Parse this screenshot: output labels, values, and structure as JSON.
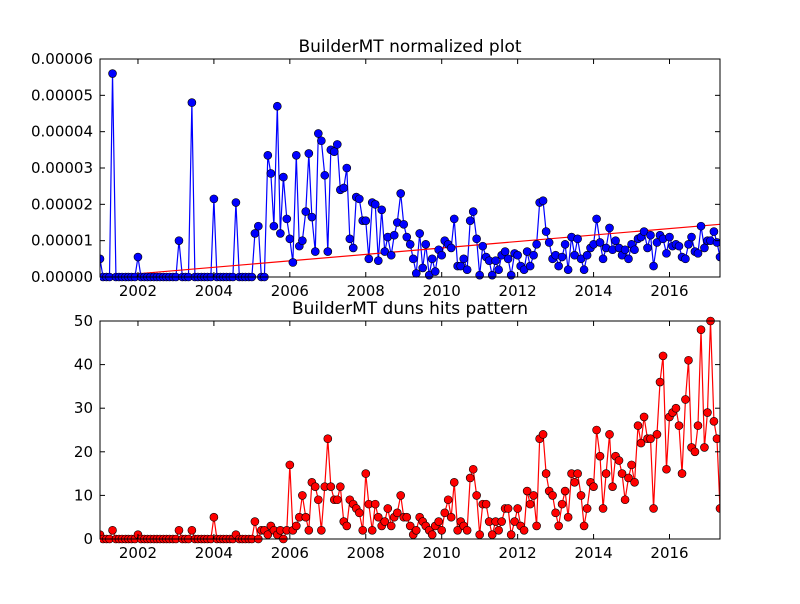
{
  "chart_data": [
    {
      "type": "line",
      "title": "BuilderMT normalized plot",
      "color": "#0000ff",
      "x": [
        2001,
        2001.08,
        2001.17,
        2001.25,
        2001.33,
        2001.42,
        2001.5,
        2001.58,
        2001.67,
        2001.75,
        2001.83,
        2001.92,
        2002,
        2002.08,
        2002.17,
        2002.25,
        2002.33,
        2002.42,
        2002.5,
        2002.58,
        2002.67,
        2002.75,
        2002.83,
        2002.92,
        2003,
        2003.08,
        2003.17,
        2003.25,
        2003.33,
        2003.42,
        2003.5,
        2003.58,
        2003.67,
        2003.75,
        2003.83,
        2003.92,
        2004,
        2004.08,
        2004.17,
        2004.25,
        2004.33,
        2004.42,
        2004.5,
        2004.58,
        2004.67,
        2004.75,
        2004.83,
        2004.92,
        2005,
        2005.08,
        2005.17,
        2005.25,
        2005.33,
        2005.42,
        2005.5,
        2005.58,
        2005.67,
        2005.75,
        2005.83,
        2005.92,
        2006,
        2006.08,
        2006.17,
        2006.25,
        2006.33,
        2006.42,
        2006.5,
        2006.58,
        2006.67,
        2006.75,
        2006.83,
        2006.92,
        2007,
        2007.08,
        2007.17,
        2007.25,
        2007.33,
        2007.42,
        2007.5,
        2007.58,
        2007.67,
        2007.75,
        2007.83,
        2007.92,
        2008,
        2008.08,
        2008.17,
        2008.25,
        2008.33,
        2008.42,
        2008.5,
        2008.58,
        2008.67,
        2008.75,
        2008.83,
        2008.92,
        2009,
        2009.08,
        2009.17,
        2009.25,
        2009.33,
        2009.42,
        2009.5,
        2009.58,
        2009.67,
        2009.75,
        2009.83,
        2009.92,
        2010,
        2010.08,
        2010.17,
        2010.25,
        2010.33,
        2010.42,
        2010.5,
        2010.58,
        2010.67,
        2010.75,
        2010.83,
        2010.92,
        2011,
        2011.08,
        2011.17,
        2011.25,
        2011.33,
        2011.42,
        2011.5,
        2011.58,
        2011.67,
        2011.75,
        2011.83,
        2011.92,
        2012,
        2012.08,
        2012.17,
        2012.25,
        2012.33,
        2012.42,
        2012.5,
        2012.58,
        2012.67,
        2012.75,
        2012.83,
        2012.92,
        2013,
        2013.08,
        2013.17,
        2013.25,
        2013.33,
        2013.42,
        2013.5,
        2013.58,
        2013.67,
        2013.75,
        2013.83,
        2013.92,
        2014,
        2014.08,
        2014.17,
        2014.25,
        2014.33,
        2014.42,
        2014.5,
        2014.58,
        2014.67,
        2014.75,
        2014.83,
        2014.92,
        2015,
        2015.08,
        2015.17,
        2015.25,
        2015.33,
        2015.42,
        2015.5,
        2015.58,
        2015.67,
        2015.75,
        2015.83,
        2015.92,
        2016,
        2016.08,
        2016.17,
        2016.25,
        2016.33,
        2016.42,
        2016.5,
        2016.58,
        2016.67,
        2016.75,
        2016.83,
        2016.92,
        2017,
        2017.08,
        2017.17,
        2017.25,
        2017.33
      ],
      "values": [
        5e-06,
        0,
        0,
        0,
        5.6e-05,
        0,
        0,
        0,
        0,
        0,
        0,
        0,
        5.5e-06,
        0,
        0,
        0,
        0,
        0,
        0,
        0,
        0,
        0,
        0,
        0,
        0,
        1e-05,
        0,
        0,
        0,
        4.8e-05,
        0,
        0,
        0,
        0,
        0,
        0,
        2.15e-05,
        0,
        0,
        0,
        0,
        0,
        0,
        2.05e-05,
        0,
        0,
        0,
        0,
        0,
        1.2e-05,
        1.4e-05,
        0,
        0,
        3.35e-05,
        2.85e-05,
        1.4e-05,
        4.7e-05,
        1.2e-05,
        2.75e-05,
        1.6e-05,
        1.05e-05,
        4e-06,
        3.35e-05,
        8.5e-06,
        1e-05,
        1.8e-05,
        3.4e-05,
        1.65e-05,
        7e-06,
        3.95e-05,
        3.75e-05,
        2.8e-05,
        7e-06,
        3.5e-05,
        3.45e-05,
        3.65e-05,
        2.4e-05,
        2.45e-05,
        3e-05,
        1.05e-05,
        8e-06,
        2.2e-05,
        2.15e-05,
        1.55e-05,
        1.55e-05,
        5e-06,
        2.05e-05,
        2e-05,
        4.5e-06,
        1.85e-05,
        7e-06,
        1.1e-05,
        6e-06,
        1.15e-05,
        1.5e-05,
        2.3e-05,
        1.45e-05,
        1.1e-05,
        9e-06,
        5e-06,
        1e-06,
        1.2e-05,
        2.5e-06,
        9e-06,
        5e-07,
        5e-06,
        1.5e-06,
        7.5e-06,
        6e-06,
        1e-05,
        9e-06,
        8e-06,
        1.6e-05,
        3e-06,
        3e-06,
        5e-06,
        2e-06,
        1.55e-05,
        1.8e-05,
        1.05e-05,
        5e-07,
        8.5e-06,
        5.5e-06,
        4.5e-06,
        5e-07,
        4.5e-06,
        2e-06,
        6e-06,
        7e-06,
        5e-06,
        5e-07,
        6.5e-06,
        6e-06,
        3e-06,
        2e-06,
        7e-06,
        3e-06,
        6e-06,
        9e-06,
        2.05e-05,
        2.1e-05,
        1.25e-05,
        9.5e-06,
        5e-06,
        6e-06,
        3e-06,
        5.5e-06,
        9e-06,
        2e-06,
        1.1e-05,
        6e-06,
        1.05e-05,
        5e-06,
        2e-06,
        6e-06,
        8e-06,
        9e-06,
        1.6e-05,
        9.5e-06,
        5e-06,
        8e-06,
        1.35e-05,
        7.5e-06,
        1e-05,
        8e-06,
        6e-06,
        7.5e-06,
        5e-06,
        9e-06,
        7.5e-06,
        1.05e-05,
        1.1e-05,
        1.25e-05,
        8e-06,
        1.15e-05,
        3e-06,
        9.5e-06,
        1.15e-05,
        1.05e-05,
        6.5e-06,
        1.1e-05,
        8.5e-06,
        9e-06,
        8.5e-06,
        5.5e-06,
        5e-06,
        9e-06,
        1.1e-05,
        7e-06,
        6.5e-06,
        1.4e-05,
        8e-06,
        1e-05,
        1e-05,
        1.25e-05,
        9.5e-06,
        5.5e-06
      ],
      "trend": {
        "color": "#ff0000",
        "x": [
          2001,
          2017.33
        ],
        "values": [
          0,
          1.45e-05
        ]
      },
      "xlim": [
        2001,
        2017.33
      ],
      "xticks": [
        2002,
        2004,
        2006,
        2008,
        2010,
        2012,
        2014,
        2016
      ],
      "ylim": [
        0,
        6e-05
      ],
      "yticks": [
        {
          "value": 0,
          "label": "0.00000"
        },
        {
          "value": 1e-05,
          "label": "0.00001"
        },
        {
          "value": 2e-05,
          "label": "0.00002"
        },
        {
          "value": 3e-05,
          "label": "0.00003"
        },
        {
          "value": 4e-05,
          "label": "0.00004"
        },
        {
          "value": 5e-05,
          "label": "0.00005"
        },
        {
          "value": 6e-05,
          "label": "0.00006"
        }
      ]
    },
    {
      "type": "line",
      "title": "BuilderMT duns hits pattern",
      "color": "#ff0000",
      "x": [
        2001,
        2001.08,
        2001.17,
        2001.25,
        2001.33,
        2001.42,
        2001.5,
        2001.58,
        2001.67,
        2001.75,
        2001.83,
        2001.92,
        2002,
        2002.08,
        2002.17,
        2002.25,
        2002.33,
        2002.42,
        2002.5,
        2002.58,
        2002.67,
        2002.75,
        2002.83,
        2002.92,
        2003,
        2003.08,
        2003.17,
        2003.25,
        2003.33,
        2003.42,
        2003.5,
        2003.58,
        2003.67,
        2003.75,
        2003.83,
        2003.92,
        2004,
        2004.08,
        2004.17,
        2004.25,
        2004.33,
        2004.42,
        2004.5,
        2004.58,
        2004.67,
        2004.75,
        2004.83,
        2004.92,
        2005,
        2005.08,
        2005.17,
        2005.25,
        2005.33,
        2005.42,
        2005.5,
        2005.58,
        2005.67,
        2005.75,
        2005.83,
        2005.92,
        2006,
        2006.08,
        2006.17,
        2006.25,
        2006.33,
        2006.42,
        2006.5,
        2006.58,
        2006.67,
        2006.75,
        2006.83,
        2006.92,
        2007,
        2007.08,
        2007.17,
        2007.25,
        2007.33,
        2007.42,
        2007.5,
        2007.58,
        2007.67,
        2007.75,
        2007.83,
        2007.92,
        2008,
        2008.08,
        2008.17,
        2008.25,
        2008.33,
        2008.42,
        2008.5,
        2008.58,
        2008.67,
        2008.75,
        2008.83,
        2008.92,
        2009,
        2009.08,
        2009.17,
        2009.25,
        2009.33,
        2009.42,
        2009.5,
        2009.58,
        2009.67,
        2009.75,
        2009.83,
        2009.92,
        2010,
        2010.08,
        2010.17,
        2010.25,
        2010.33,
        2010.42,
        2010.5,
        2010.58,
        2010.67,
        2010.75,
        2010.83,
        2010.92,
        2011,
        2011.08,
        2011.17,
        2011.25,
        2011.33,
        2011.42,
        2011.5,
        2011.58,
        2011.67,
        2011.75,
        2011.83,
        2011.92,
        2012,
        2012.08,
        2012.17,
        2012.25,
        2012.33,
        2012.42,
        2012.5,
        2012.58,
        2012.67,
        2012.75,
        2012.83,
        2012.92,
        2013,
        2013.08,
        2013.17,
        2013.25,
        2013.33,
        2013.42,
        2013.5,
        2013.58,
        2013.67,
        2013.75,
        2013.83,
        2013.92,
        2014,
        2014.08,
        2014.17,
        2014.25,
        2014.33,
        2014.42,
        2014.5,
        2014.58,
        2014.67,
        2014.75,
        2014.83,
        2014.92,
        2015,
        2015.08,
        2015.17,
        2015.25,
        2015.33,
        2015.42,
        2015.5,
        2015.58,
        2015.67,
        2015.75,
        2015.83,
        2015.92,
        2016,
        2016.08,
        2016.17,
        2016.25,
        2016.33,
        2016.42,
        2016.5,
        2016.58,
        2016.67,
        2016.75,
        2016.83,
        2016.92,
        2017,
        2017.08,
        2017.17,
        2017.25,
        2017.33
      ],
      "values": [
        1,
        0,
        0,
        0,
        2,
        0,
        0,
        0,
        0,
        0,
        0,
        0,
        1,
        0,
        0,
        0,
        0,
        0,
        0,
        0,
        0,
        0,
        0,
        0,
        0,
        2,
        0,
        0,
        0,
        2,
        0,
        0,
        0,
        0,
        0,
        0,
        5,
        0,
        0,
        0,
        0,
        0,
        0,
        1,
        0,
        0,
        0,
        0,
        0,
        4,
        0,
        2,
        2,
        1,
        3,
        2,
        1,
        2,
        0,
        2,
        17,
        2,
        3,
        5,
        10,
        5,
        2,
        13,
        12,
        9,
        2,
        12,
        23,
        12,
        9,
        9,
        12,
        4,
        3,
        9,
        8,
        7,
        6,
        2,
        15,
        8,
        2,
        8,
        5,
        3,
        4,
        7,
        3,
        5,
        6,
        10,
        5,
        5,
        3,
        1,
        2,
        5,
        4,
        3,
        2,
        1,
        3,
        4,
        2,
        6,
        9,
        5,
        13,
        2,
        4,
        3,
        2,
        14,
        16,
        10,
        1,
        8,
        8,
        4,
        1,
        4,
        2,
        4,
        7,
        7,
        1,
        4,
        7,
        3,
        2,
        11,
        8,
        10,
        3,
        23,
        24,
        15,
        11,
        10,
        6,
        3,
        8,
        11,
        5,
        15,
        13,
        15,
        10,
        3,
        7,
        13,
        12,
        25,
        19,
        7,
        15,
        24,
        12,
        19,
        18,
        15,
        9,
        14,
        17,
        13,
        26,
        22,
        28,
        23,
        23,
        7,
        24,
        36,
        42,
        16,
        28,
        29,
        30,
        26,
        15,
        32,
        41,
        21,
        20,
        26,
        48,
        21,
        29,
        50,
        27,
        23,
        7
      ],
      "xlim": [
        2001,
        2017.33
      ],
      "xticks": [
        2002,
        2004,
        2006,
        2008,
        2010,
        2012,
        2014,
        2016
      ],
      "ylim": [
        0,
        50
      ],
      "yticks": [
        0,
        10,
        20,
        30,
        40,
        50
      ]
    }
  ]
}
